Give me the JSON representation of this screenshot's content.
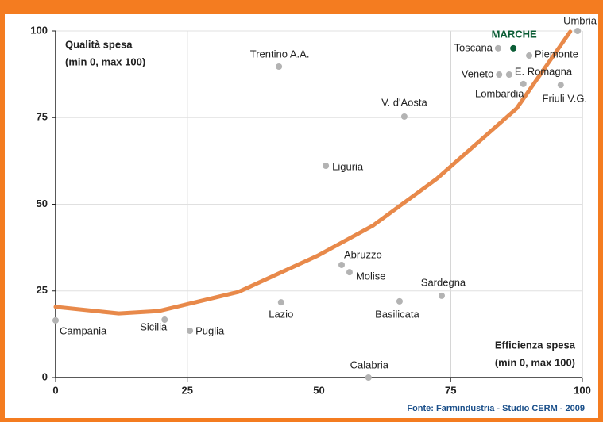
{
  "chart_data": {
    "type": "scatter",
    "ylabel": [
      "Qualità spesa",
      "(min 0, max 100)"
    ],
    "xlabel": [
      "Efficienza spesa",
      "(min 0, max 100)"
    ],
    "source": "Fonte: Farmindustria - Studio CERM - 2009",
    "labels": [
      "Umbria",
      "MARCHE",
      "Toscana",
      "Piemonte",
      "Veneto",
      "E. Romagna",
      "Lombardia",
      "Friuli V.G.",
      "Trentino A.A.",
      "V. d'Aosta",
      "Liguria",
      "Abruzzo",
      "Molise",
      "Sardegna",
      "Basilicata",
      "Lazio",
      "Sicilia",
      "Campania",
      "Puglia",
      "Calabria"
    ],
    "x": [
      99.1,
      86.9,
      84.0,
      89.9,
      84.2,
      86.1,
      88.8,
      95.9,
      42.4,
      66.2,
      51.3,
      54.3,
      55.8,
      73.3,
      65.3,
      42.8,
      20.7,
      0,
      25.5,
      59.4
    ],
    "values": [
      100,
      95.0,
      95.0,
      92.9,
      87.4,
      87.4,
      84.7,
      84.4,
      89.7,
      75.3,
      61.1,
      32.5,
      30.4,
      23.6,
      22.0,
      21.7,
      16.7,
      16.5,
      13.5,
      0
    ],
    "colors": [
      "#b3b3b3",
      "#0b5d36",
      "#b3b3b3",
      "#b3b3b3",
      "#b3b3b3",
      "#b3b3b3",
      "#b3b3b3",
      "#b3b3b3",
      "#b3b3b3",
      "#b3b3b3",
      "#b3b3b3",
      "#b3b3b3",
      "#b3b3b3",
      "#b3b3b3",
      "#b3b3b3",
      "#b3b3b3",
      "#b3b3b3",
      "#b3b3b3",
      "#b3b3b3",
      "#b3b3b3"
    ],
    "trend": {
      "color": "#e8894a",
      "x": [
        0,
        12,
        19.6,
        34.7,
        49.8,
        60.3,
        72.4,
        87.5,
        97.7
      ],
      "values": [
        20.4,
        18.5,
        19.2,
        24.7,
        35.2,
        43.9,
        57.4,
        77.6,
        99.8
      ]
    },
    "xlim": [
      0,
      100
    ],
    "ylim": [
      0,
      100
    ],
    "xticks": [
      0,
      25,
      50,
      75,
      100
    ],
    "yticks": [
      0,
      25,
      50,
      75,
      100
    ],
    "grid": true
  }
}
